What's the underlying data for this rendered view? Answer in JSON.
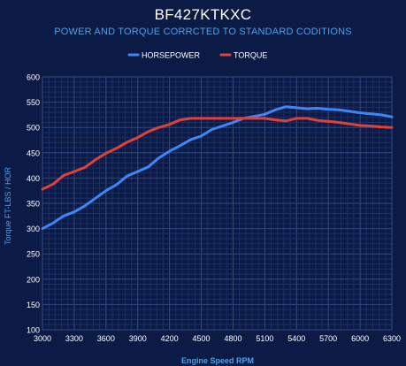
{
  "colors": {
    "background": "#0c1b46",
    "hp": "#3f86f4",
    "torque": "#e0403a",
    "grid_major": "#2f4a82",
    "grid_minor": "#1c2f62",
    "label": "#4ea0e6"
  },
  "chart_data": {
    "type": "line",
    "title": "BF427KTKXC",
    "subtitle": "POWER AND TORQUE CORRCTED TO STANDARD CODITIONS",
    "xlabel": "Engine Speed RPM",
    "ylabel": "Torque FT-LBS / HOR",
    "xlim": [
      3000,
      6300
    ],
    "ylim": [
      100,
      600
    ],
    "x_ticks": [
      "3000",
      "3300",
      "3600",
      "3900",
      "4200",
      "4500",
      "4800",
      "5100",
      "5400",
      "5700",
      "6000",
      "6300"
    ],
    "y_ticks": [
      "100",
      "150",
      "200",
      "250",
      "300",
      "350",
      "400",
      "450",
      "500",
      "550",
      "600"
    ],
    "legend_position": "top-center",
    "grid": true,
    "x": [
      3000,
      3100,
      3200,
      3300,
      3400,
      3500,
      3600,
      3700,
      3800,
      3900,
      4000,
      4100,
      4200,
      4300,
      4400,
      4500,
      4600,
      4700,
      4800,
      4900,
      5000,
      5100,
      5200,
      5300,
      5400,
      5500,
      5600,
      5700,
      5800,
      5900,
      6000,
      6100,
      6200,
      6300
    ],
    "series": [
      {
        "name": "HORSEPOWER",
        "color": "#3f86f4",
        "values": [
          300,
          311,
          325,
          333,
          345,
          360,
          375,
          387,
          404,
          413,
          422,
          440,
          453,
          464,
          476,
          483,
          496,
          503,
          510,
          518,
          522,
          526,
          535,
          541,
          539,
          537,
          538,
          536,
          535,
          532,
          529,
          527,
          525,
          521
        ]
      },
      {
        "name": "TORQUE",
        "color": "#e0403a",
        "values": [
          378,
          388,
          405,
          413,
          421,
          436,
          449,
          459,
          471,
          480,
          492,
          500,
          506,
          515,
          518,
          518,
          518,
          518,
          518,
          518,
          518,
          518,
          515,
          513,
          518,
          518,
          514,
          512,
          510,
          507,
          504,
          503,
          501,
          500
        ]
      }
    ]
  }
}
